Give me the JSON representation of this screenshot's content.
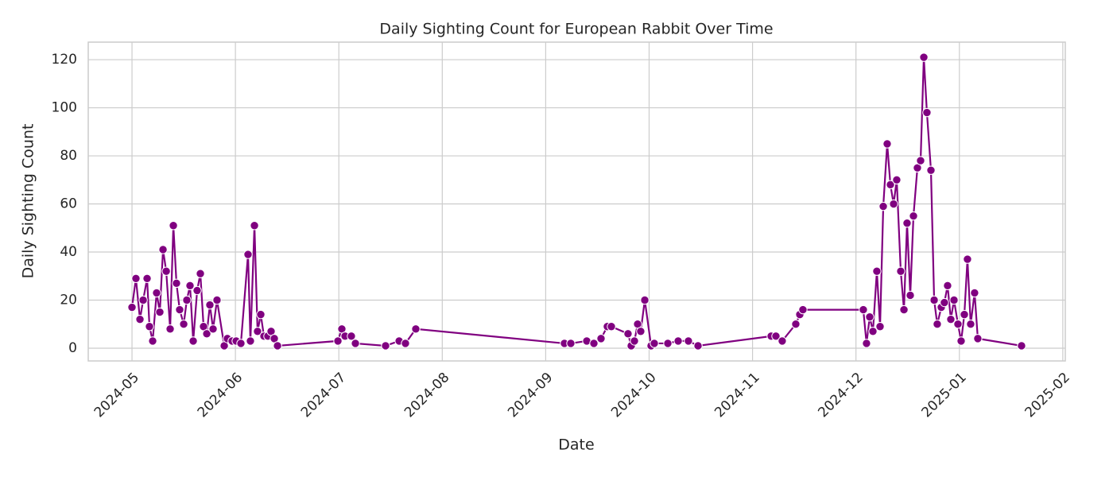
{
  "chart_data": {
    "type": "line",
    "title": "Daily Sighting Count for European Rabbit Over Time",
    "xlabel": "Date",
    "ylabel": "Daily Sighting Count",
    "color": "#800080",
    "grid": true,
    "xlim": [
      4.577,
      14.024
    ],
    "ylim": [
      -5.3,
      127.3
    ],
    "xticks": [
      {
        "value": 5,
        "label": "2024-05"
      },
      {
        "value": 6,
        "label": "2024-06"
      },
      {
        "value": 7,
        "label": "2024-07"
      },
      {
        "value": 8,
        "label": "2024-08"
      },
      {
        "value": 9,
        "label": "2024-09"
      },
      {
        "value": 10,
        "label": "2024-10"
      },
      {
        "value": 11,
        "label": "2024-11"
      },
      {
        "value": 12,
        "label": "2024-12"
      },
      {
        "value": 13,
        "label": "2025-01"
      },
      {
        "value": 14,
        "label": "2025-02"
      }
    ],
    "yticks": [
      0,
      20,
      40,
      60,
      80,
      100,
      120
    ],
    "x": [
      5.0,
      5.038,
      5.077,
      5.108,
      5.146,
      5.169,
      5.2,
      5.238,
      5.269,
      5.3,
      5.331,
      5.369,
      5.4,
      5.43,
      5.461,
      5.5,
      5.53,
      5.561,
      5.592,
      5.63,
      5.661,
      5.692,
      5.723,
      5.753,
      5.784,
      5.822,
      5.892,
      5.922,
      5.968,
      6.007,
      6.053,
      6.122,
      6.145,
      6.184,
      6.214,
      6.245,
      6.276,
      6.314,
      6.345,
      6.376,
      6.407,
      6.991,
      7.029,
      7.06,
      7.121,
      7.16,
      7.452,
      7.583,
      7.644,
      7.744,
      9.181,
      9.243,
      9.397,
      9.466,
      9.535,
      9.596,
      9.635,
      9.796,
      9.827,
      9.858,
      9.889,
      9.919,
      9.958,
      10.019,
      10.05,
      10.181,
      10.281,
      10.38,
      10.473,
      11.18,
      11.226,
      11.287,
      11.418,
      11.457,
      11.487,
      12.071,
      12.102,
      12.133,
      12.164,
      12.202,
      12.233,
      12.264,
      12.302,
      12.333,
      12.364,
      12.394,
      12.433,
      12.464,
      12.494,
      12.525,
      12.556,
      12.594,
      12.625,
      12.656,
      12.686,
      12.725,
      12.756,
      12.786,
      12.825,
      12.855,
      12.886,
      12.917,
      12.948,
      12.986,
      13.017,
      13.048,
      13.078,
      13.109,
      13.147,
      13.178,
      13.601
    ],
    "values": [
      17,
      29,
      12,
      20,
      29,
      9,
      3,
      23,
      15,
      41,
      32,
      8,
      51,
      27,
      16,
      10,
      20,
      26,
      3,
      24,
      31,
      9,
      6,
      18,
      8,
      20,
      1,
      4,
      3,
      3,
      2,
      39,
      3,
      51,
      7,
      14,
      5,
      5,
      7,
      4,
      1,
      3,
      8,
      5,
      5,
      2,
      1,
      3,
      2,
      8,
      2,
      2,
      3,
      2,
      4,
      9,
      9,
      6,
      1,
      3,
      10,
      7,
      20,
      1,
      2,
      2,
      3,
      3,
      1,
      5,
      5,
      3,
      10,
      14,
      16,
      16,
      2,
      13,
      7,
      32,
      9,
      59,
      85,
      68,
      60,
      70,
      32,
      16,
      52,
      22,
      55,
      75,
      78,
      121,
      98,
      74,
      20,
      10,
      17,
      19,
      26,
      12,
      20,
      10,
      3,
      14,
      37,
      10,
      23,
      4,
      1
    ]
  }
}
